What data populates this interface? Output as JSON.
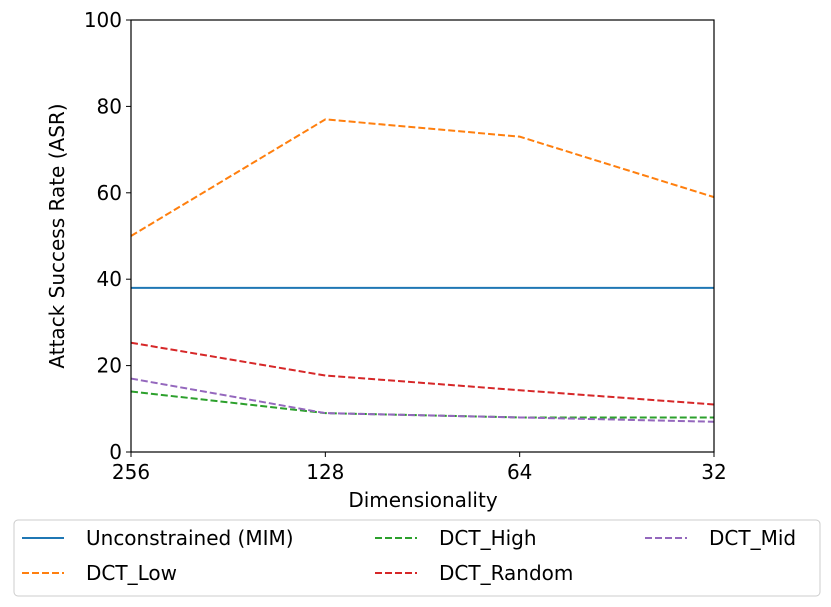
{
  "chart_data": {
    "type": "line",
    "title": "",
    "xlabel": "Dimensionality",
    "ylabel": "Attack Success Rate (ASR)",
    "categories": [
      "256",
      "128",
      "64",
      "32"
    ],
    "ylim": [
      0,
      100
    ],
    "yticks": [
      0,
      20,
      40,
      60,
      80,
      100
    ],
    "grid": false,
    "legend_placement": "bottom (below plot, 3 columns)",
    "series": [
      {
        "name": "Unconstrained (MIM)",
        "color": "#1f77b4",
        "dash": "solid",
        "values": [
          38,
          38,
          38,
          38
        ]
      },
      {
        "name": "DCT_Low",
        "color": "#ff7f0e",
        "dash": "dashed",
        "values": [
          50,
          77,
          73,
          59
        ]
      },
      {
        "name": "DCT_High",
        "color": "#2ca02c",
        "dash": "dashed",
        "values": [
          14,
          9,
          8,
          8
        ]
      },
      {
        "name": "DCT_Random",
        "color": "#d62728",
        "dash": "dashed",
        "values": [
          25.3,
          17.7,
          14.3,
          11
        ]
      },
      {
        "name": "DCT_Mid",
        "color": "#9467bd",
        "dash": "dashed",
        "values": [
          17,
          9,
          8,
          7
        ]
      }
    ]
  }
}
